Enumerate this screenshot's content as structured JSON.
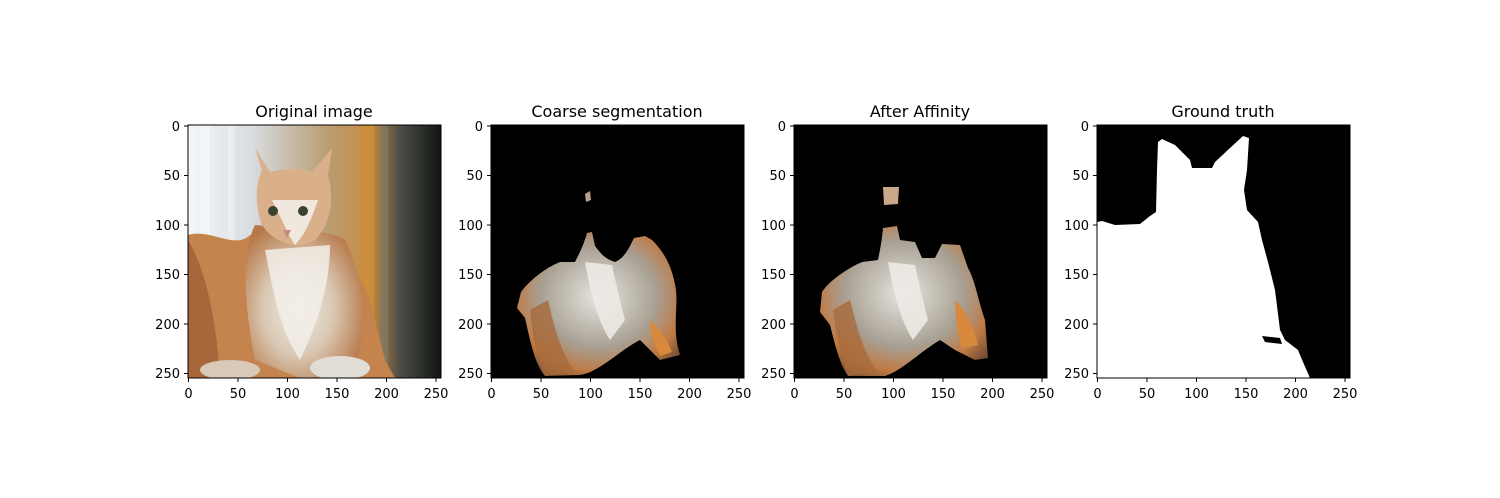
{
  "figure": {
    "panels": [
      {
        "id": "original",
        "title": "Original image",
        "content": "cat photo"
      },
      {
        "id": "coarse",
        "title": "Coarse segmentation",
        "content": "masked cat"
      },
      {
        "id": "affinity",
        "title": "After Affinity",
        "content": "masked cat (refined)"
      },
      {
        "id": "gt",
        "title": "Ground truth",
        "content": "binary mask"
      }
    ],
    "x_ticks": [
      "0",
      "50",
      "100",
      "150",
      "200",
      "250"
    ],
    "y_ticks": [
      "0",
      "50",
      "100",
      "150",
      "200",
      "250"
    ],
    "axis_range": [
      0,
      255
    ],
    "colors": {
      "background": "#000000",
      "mask": "#ffffff",
      "fur_light": "#e9e3da",
      "fur_orange": "#c07a44",
      "fur_dark": "#6b4a33"
    }
  }
}
